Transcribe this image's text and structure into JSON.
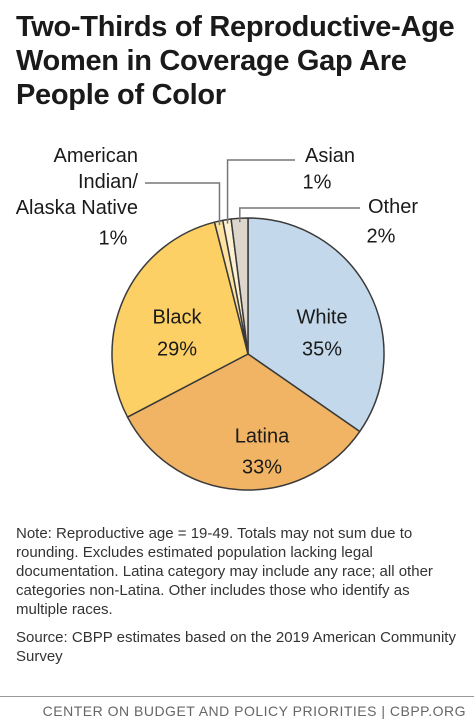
{
  "chart_data": {
    "type": "pie",
    "title": "Two-Thirds of Reproductive-Age Women in Coverage Gap Are People of Color",
    "categories": [
      "White",
      "Latina",
      "Black",
      "American Indian/ Alaska Native",
      "Asian",
      "Other"
    ],
    "values": [
      35,
      33,
      29,
      1,
      1,
      2
    ],
    "value_labels": [
      "35%",
      "33%",
      "29%",
      "1%",
      "1%",
      "2%"
    ],
    "colors": [
      "#c3d8ea",
      "#f0b464",
      "#fcd064",
      "#fde2a2",
      "#fdf1d2",
      "#dcd6cd"
    ],
    "note": "Note: Reproductive age = 19-49. Totals may not sum due to rounding. Excludes estimated population lacking legal documentation. Latina category may include any race; all other categories non-Latina. Other includes those who identify as multiple races.",
    "source": "Source: CBPP estimates based on the 2019 American Community Survey",
    "footer": "CENTER ON BUDGET AND POLICY PRIORITIES | CBPP.ORG"
  }
}
